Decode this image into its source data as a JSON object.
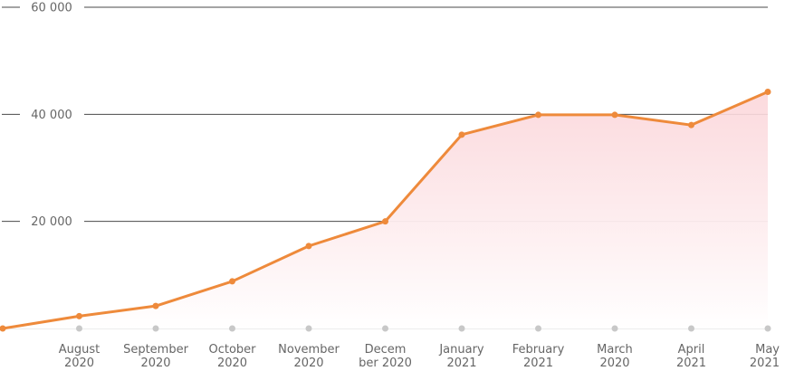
{
  "chart_data": {
    "type": "area",
    "title": "",
    "xlabel": "",
    "ylabel": "",
    "ylim": [
      0,
      60000
    ],
    "y_ticks": [
      {
        "value": 20000,
        "label": "20 000"
      },
      {
        "value": 40000,
        "label": "40 000"
      },
      {
        "value": 60000,
        "label": "60 000"
      }
    ],
    "categories": [
      [
        "",
        ""
      ],
      [
        "August",
        "2020"
      ],
      [
        "September",
        "2020"
      ],
      [
        "October",
        "2020"
      ],
      [
        "November",
        "2020"
      ],
      [
        "Decem",
        "ber 2020"
      ],
      [
        "January",
        "2021"
      ],
      [
        "February",
        "2021"
      ],
      [
        "March",
        "2020"
      ],
      [
        "April",
        "2021"
      ],
      [
        "May",
        "2021"
      ]
    ],
    "series": [
      {
        "values": [
          0,
          2300,
          4200,
          8800,
          15400,
          20000,
          36200,
          39900,
          39900,
          38000,
          44200
        ]
      }
    ],
    "grid": true,
    "legend": "none",
    "colors": {
      "line": "#ee8a3b",
      "area_top": "#fbd6da",
      "area_bottom": "#ffffff",
      "grid": "#4a4a4a",
      "baseline": "#d9d9d9",
      "tick_dot": "#c8c8c8",
      "label": "#666666"
    }
  }
}
